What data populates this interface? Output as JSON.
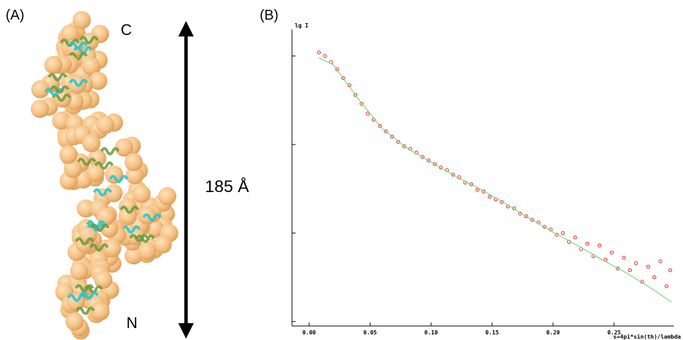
{
  "panel_a": {
    "label": "(A)",
    "terminal_c": "C",
    "terminal_n": "N",
    "length": "185 Å"
  },
  "chart_data": {
    "type": "scatter",
    "panel_label": "(B)",
    "y_label": "lg I",
    "x_label": "s=4pi*sin(th)/lambda",
    "xlim": [
      -0.014,
      0.299
    ],
    "ylim": [
      -0.05,
      3.3
    ],
    "xticks": [
      {
        "value": 0,
        "label": "0.00"
      },
      0.05,
      {
        "value": 0.1,
        "label": "0.10"
      },
      0.15,
      {
        "value": 0.2,
        "label": "0.20"
      },
      0.25
    ],
    "yticks": [
      0,
      1,
      2,
      3
    ],
    "series": [
      {
        "kind": "scatter",
        "color": "#e8231e",
        "x": [
          0.008,
          0.013,
          0.018,
          0.023,
          0.028,
          0.033,
          0.038,
          0.043,
          0.048,
          0.053,
          0.058,
          0.063,
          0.068,
          0.073,
          0.078,
          0.083,
          0.088,
          0.093,
          0.098,
          0.103,
          0.108,
          0.113,
          0.118,
          0.123,
          0.128,
          0.133,
          0.138,
          0.143,
          0.148,
          0.153,
          0.158,
          0.163,
          0.168,
          0.173,
          0.178,
          0.183,
          0.188,
          0.193,
          0.198,
          0.203,
          0.208,
          0.213,
          0.218,
          0.223,
          0.228,
          0.233,
          0.238,
          0.243,
          0.248,
          0.253,
          0.258,
          0.263,
          0.268,
          0.273,
          0.278,
          0.283,
          0.288,
          0.293,
          0.296
        ],
        "values": [
          3.04,
          3.0,
          2.93,
          2.85,
          2.75,
          2.67,
          2.56,
          2.46,
          2.35,
          2.28,
          2.21,
          2.15,
          2.09,
          2.03,
          1.98,
          1.95,
          1.91,
          1.86,
          1.82,
          1.78,
          1.74,
          1.71,
          1.66,
          1.63,
          1.57,
          1.55,
          1.49,
          1.47,
          1.41,
          1.38,
          1.35,
          1.3,
          1.28,
          1.22,
          1.19,
          1.15,
          1.12,
          1.07,
          1.04,
          0.98,
          1.0,
          0.9,
          0.95,
          0.82,
          0.88,
          0.74,
          0.86,
          0.7,
          0.78,
          0.6,
          0.72,
          0.58,
          0.66,
          0.45,
          0.62,
          0.5,
          0.68,
          0.4,
          0.58
        ]
      },
      {
        "kind": "line",
        "color": "#7ed67e",
        "x": [
          0.008,
          0.02,
          0.04,
          0.06,
          0.08,
          0.1,
          0.12,
          0.14,
          0.16,
          0.18,
          0.2,
          0.22,
          0.24,
          0.26,
          0.28,
          0.297
        ],
        "values": [
          2.98,
          2.9,
          2.52,
          2.18,
          1.96,
          1.8,
          1.64,
          1.5,
          1.34,
          1.17,
          1.01,
          0.86,
          0.7,
          0.55,
          0.38,
          0.22
        ]
      }
    ]
  }
}
